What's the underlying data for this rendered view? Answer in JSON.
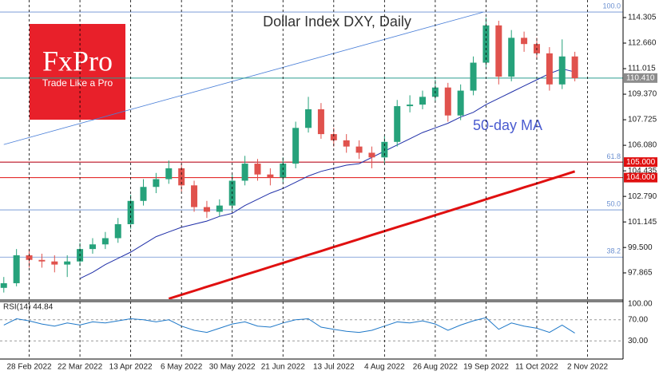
{
  "chart_data": [
    {
      "type": "candlestick",
      "title": "Dollar Index DXY, Daily",
      "xlim": [
        -0.3,
        48.8
      ],
      "xticks": [
        {
          "value": 2,
          "label": "28 Feb 2022"
        },
        {
          "value": 6,
          "label": "22 Mar 2022"
        },
        {
          "value": 10,
          "label": "13 Apr 2022"
        },
        {
          "value": 14,
          "label": "6 May 2022"
        },
        {
          "value": 18,
          "label": "30 May 2022"
        },
        {
          "value": 22,
          "label": "21 Jun 2022"
        },
        {
          "value": 26,
          "label": "13 Jul 2022"
        },
        {
          "value": 30,
          "label": "4 Aug 2022"
        },
        {
          "value": 34,
          "label": "26 Aug 2022"
        },
        {
          "value": 38,
          "label": "19 Sep 2022"
        },
        {
          "value": 42,
          "label": "11 Oct 2022"
        },
        {
          "value": 46,
          "label": "2 Nov 2022"
        }
      ],
      "ylim": [
        96.17,
        115.435
      ],
      "yticks": [
        {
          "value": 114.305,
          "label": "114.305"
        },
        {
          "value": 112.66,
          "label": "112.660"
        },
        {
          "value": 111.015,
          "label": "111.015"
        },
        {
          "value": 109.37,
          "label": "109.370"
        },
        {
          "value": 107.725,
          "label": "107.725"
        },
        {
          "value": 106.08,
          "label": "106.080"
        },
        {
          "value": 104.435,
          "label": "104.435"
        },
        {
          "value": 102.79,
          "label": "102.790"
        },
        {
          "value": 101.145,
          "label": "101.145"
        },
        {
          "value": 99.5,
          "label": "99.500"
        },
        {
          "value": 97.865,
          "label": "97.865"
        }
      ],
      "open": [
        96.9,
        97.2,
        99.0,
        98.7,
        98.6,
        98.4,
        98.6,
        99.4,
        99.7,
        100.1,
        101.0,
        102.5,
        103.4,
        103.9,
        104.6,
        103.5,
        102.1,
        101.8,
        102.2,
        103.8,
        104.9,
        104.2,
        104.0,
        104.9,
        107.2,
        108.4,
        106.8,
        106.4,
        106.0,
        105.6,
        105.3,
        106.3,
        108.6,
        108.7,
        109.2,
        109.8,
        108.0,
        109.6,
        111.4,
        113.8,
        110.5,
        113.0,
        112.6,
        112.0,
        110.0,
        111.8
      ],
      "high": [
        97.6,
        99.4,
        99.4,
        99.1,
        99.0,
        99.0,
        99.8,
        100.1,
        100.5,
        101.4,
        102.9,
        103.9,
        104.3,
        105.1,
        104.9,
        103.8,
        102.5,
        102.6,
        104.2,
        105.4,
        105.2,
        104.6,
        105.3,
        107.6,
        109.2,
        108.8,
        107.2,
        106.8,
        106.4,
        106.0,
        106.7,
        109.0,
        109.3,
        109.6,
        110.3,
        110.1,
        110.0,
        111.8,
        114.3,
        114.1,
        113.5,
        113.4,
        113.0,
        112.4,
        112.9,
        112.1
      ],
      "low": [
        96.6,
        97.0,
        98.2,
        98.2,
        97.9,
        97.6,
        98.3,
        99.1,
        99.4,
        99.8,
        100.7,
        102.2,
        103.0,
        103.6,
        103.1,
        101.8,
        101.4,
        101.5,
        101.9,
        103.5,
        103.8,
        103.5,
        103.7,
        104.6,
        106.9,
        106.5,
        106.0,
        105.6,
        105.2,
        104.6,
        104.9,
        106.0,
        108.2,
        108.4,
        108.9,
        107.6,
        107.7,
        109.3,
        111.1,
        110.0,
        110.2,
        112.1,
        111.6,
        109.6,
        109.7,
        110.2
      ],
      "close": [
        97.2,
        99.0,
        98.7,
        98.6,
        98.4,
        98.6,
        99.4,
        99.7,
        100.1,
        101.0,
        102.5,
        103.4,
        103.9,
        104.6,
        103.5,
        102.1,
        101.8,
        102.2,
        103.8,
        104.9,
        104.2,
        104.0,
        104.9,
        107.2,
        108.4,
        106.8,
        106.4,
        106.0,
        105.6,
        105.3,
        106.3,
        108.6,
        108.7,
        109.2,
        109.8,
        108.0,
        109.6,
        111.4,
        113.8,
        110.5,
        113.0,
        112.6,
        112.0,
        110.0,
        111.8,
        110.4
      ],
      "up_color": "#26a27b",
      "down_color": "#e0524d",
      "series": [
        {
          "name": "50-day MA",
          "color": "#1f2fa8",
          "values": [
            null,
            null,
            null,
            null,
            null,
            null,
            97.5,
            97.9,
            98.4,
            98.8,
            99.2,
            99.7,
            100.2,
            100.5,
            100.8,
            101.0,
            101.2,
            101.5,
            101.7,
            102.2,
            102.6,
            103.0,
            103.3,
            103.7,
            104.1,
            104.4,
            104.6,
            104.8,
            104.9,
            105.3,
            105.7,
            106.1,
            106.5,
            106.9,
            107.2,
            107.5,
            107.9,
            108.2,
            108.7,
            109.1,
            109.5,
            109.9,
            110.3,
            110.7,
            111.0,
            110.8
          ]
        },
        {
          "color": "#e01010",
          "values": [
            null,
            null,
            null,
            null,
            null,
            null,
            null,
            null,
            null,
            null,
            null,
            null,
            null,
            96.2,
            96.46,
            96.71,
            96.97,
            97.22,
            97.48,
            97.74,
            97.99,
            98.25,
            98.5,
            98.76,
            99.02,
            99.27,
            99.53,
            99.78,
            100.04,
            100.3,
            100.55,
            100.81,
            101.06,
            101.32,
            101.58,
            101.83,
            102.09,
            102.34,
            102.6,
            102.86,
            103.11,
            103.37,
            103.62,
            103.88,
            104.14,
            104.4
          ]
        }
      ],
      "levels": [
        {
          "value": 110.41,
          "label": "110.410",
          "color": "#2a9d8f",
          "box": "#8c8c8c"
        },
        {
          "value": 105,
          "label": "105.000",
          "color": "#e01010",
          "box": "#e01010"
        },
        {
          "value": 104,
          "label": "104.000",
          "color": "#e01010",
          "box": "#e01010"
        }
      ],
      "fib": [
        {
          "value": 114.66,
          "label": "100.0"
        },
        {
          "value": 104.98,
          "label": "61.8"
        },
        {
          "value": 101.92,
          "label": "50.0"
        },
        {
          "value": 98.88,
          "label": "38.2"
        }
      ],
      "fib_color": "#6a8fd0",
      "trendline": {
        "x": [
          0,
          37.8
        ],
        "y": [
          106.13,
          114.66
        ],
        "color": "#4a7fd8"
      },
      "logo": {
        "title": "FxPro",
        "subtitle": "Trade Like a Pro",
        "color": "#e8202a"
      }
    },
    {
      "type": "line",
      "title": "RSI(14) 44.84",
      "xlim": [
        -0.3,
        48.8
      ],
      "ylim": [
        0,
        100
      ],
      "yticks": [
        {
          "value": 100,
          "label": "100.00"
        },
        {
          "value": 70,
          "label": "70.00"
        },
        {
          "value": 30,
          "label": "30.00"
        }
      ],
      "series": [
        {
          "color": "#1e78c8",
          "values": [
            60,
            72,
            68,
            62,
            58,
            64,
            60,
            66,
            64,
            68,
            72,
            70,
            66,
            70,
            58,
            50,
            46,
            54,
            62,
            66,
            58,
            56,
            64,
            70,
            72,
            56,
            52,
            48,
            46,
            50,
            58,
            66,
            64,
            68,
            62,
            50,
            60,
            68,
            74,
            52,
            64,
            58,
            54,
            46,
            60,
            44.84
          ]
        }
      ]
    }
  ]
}
